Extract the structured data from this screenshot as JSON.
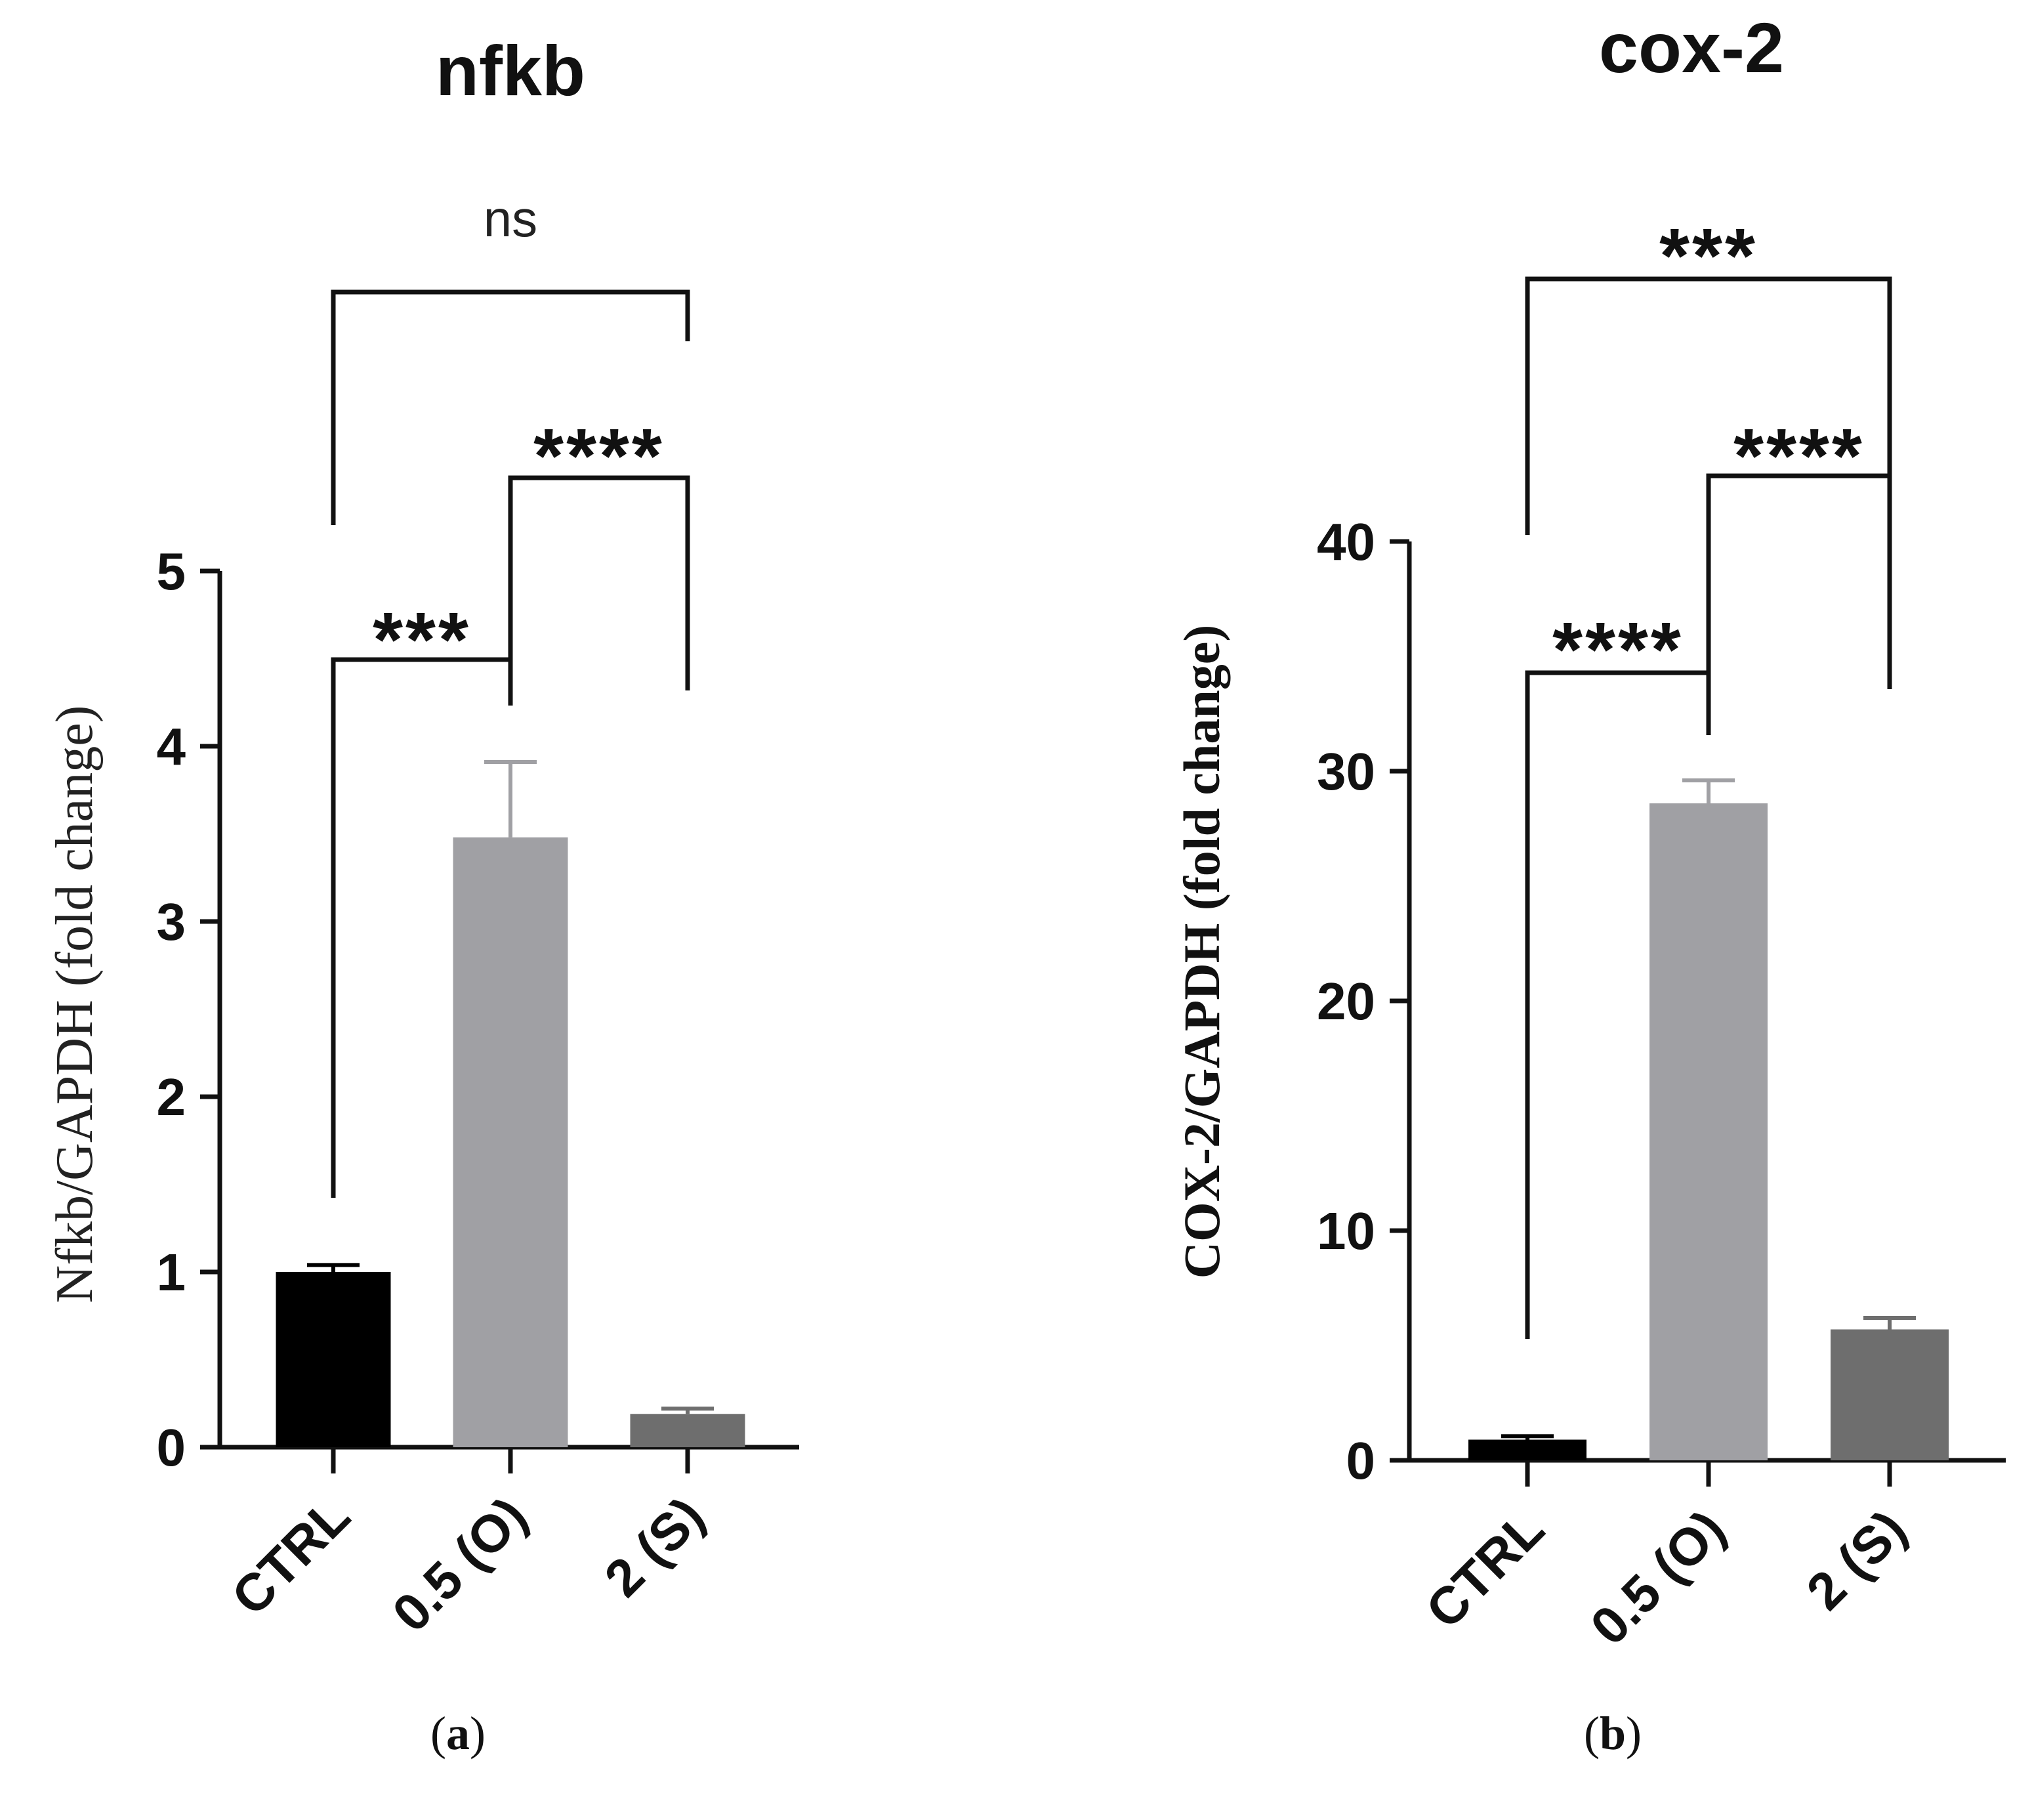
{
  "chart_data": [
    {
      "type": "bar",
      "panel": "a",
      "title": "nfkb",
      "ylabel": "Nfkb/GAPDH (fold change)",
      "xlabel": "",
      "categories": [
        "CTRL",
        "0.5 (O)",
        "2 (S)"
      ],
      "values": [
        1.0,
        3.48,
        0.19
      ],
      "error": [
        0.04,
        0.43,
        0.03
      ],
      "colors": [
        "#000000",
        "#a0a0a4",
        "#6e6e6e"
      ],
      "ylim": [
        0,
        5
      ],
      "yticks": [
        0,
        1,
        2,
        3,
        4,
        5
      ],
      "grid": false,
      "comparisons": [
        {
          "from": "CTRL",
          "to": "0.5 (O)",
          "label": "***"
        },
        {
          "from": "0.5 (O)",
          "to": "2 (S)",
          "label": "****"
        },
        {
          "from": "CTRL",
          "to": "2 (S)",
          "label": "ns"
        }
      ]
    },
    {
      "type": "bar",
      "panel": "b",
      "title": "cox-2",
      "ylabel": "COX-2/GAPDH (fold change)",
      "xlabel": "",
      "categories": [
        "CTRL",
        "0.5 (O)",
        "2 (S)"
      ],
      "values": [
        0.9,
        28.6,
        5.7
      ],
      "error": [
        0.15,
        1.0,
        0.5
      ],
      "colors": [
        "#000000",
        "#a0a0a4",
        "#6e6e6e"
      ],
      "ylim": [
        0,
        40
      ],
      "yticks": [
        0,
        10,
        20,
        30,
        40
      ],
      "grid": false,
      "comparisons": [
        {
          "from": "CTRL",
          "to": "0.5 (O)",
          "label": "****"
        },
        {
          "from": "0.5 (O)",
          "to": "2 (S)",
          "label": "****"
        },
        {
          "from": "CTRL",
          "to": "2 (S)",
          "label": "***"
        }
      ]
    }
  ],
  "panel_labels": [
    "a",
    "b"
  ]
}
